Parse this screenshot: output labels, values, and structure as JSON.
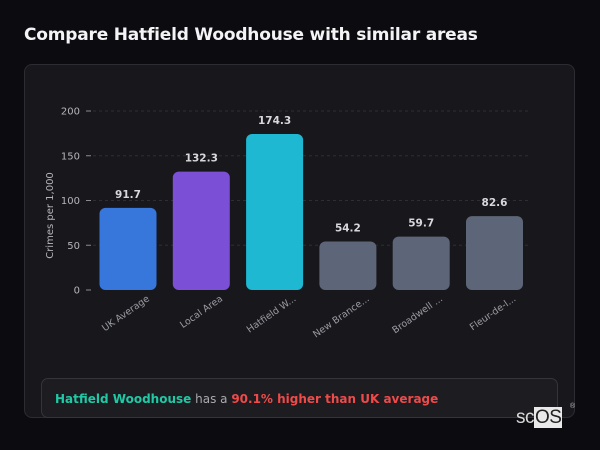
{
  "header": {
    "title": "Compare Hatfield Woodhouse with similar areas"
  },
  "chart_data": {
    "type": "bar",
    "title": "Compare Hatfield Woodhouse with similar areas",
    "xlabel": "",
    "ylabel": "Crimes per 1,000",
    "ylim": [
      0,
      200
    ],
    "yticks": [
      0,
      50,
      100,
      150,
      200
    ],
    "grid": "horizontal dashed",
    "legend": "none",
    "categories": [
      "UK Average",
      "Local Area",
      "Hatfield W...",
      "New Brance...",
      "Broadwell ...",
      "Fleur-de-l..."
    ],
    "values": [
      91.7,
      132.3,
      174.3,
      54.2,
      59.7,
      82.6
    ],
    "value_labels": [
      "91.7",
      "132.3",
      "174.3",
      "54.2",
      "59.7",
      "82.6"
    ],
    "colors": [
      "#3776db",
      "#7b4fd6",
      "#1eb8d2",
      "#5d6678",
      "#5d6678",
      "#5d6678"
    ]
  },
  "insight": {
    "area_name": "Hatfield Woodhouse",
    "connector": " has a ",
    "stat": "90.1% higher than UK average"
  },
  "branding": {
    "logo_prefix": "sc",
    "logo_suffix": "OS",
    "registered": "®"
  }
}
